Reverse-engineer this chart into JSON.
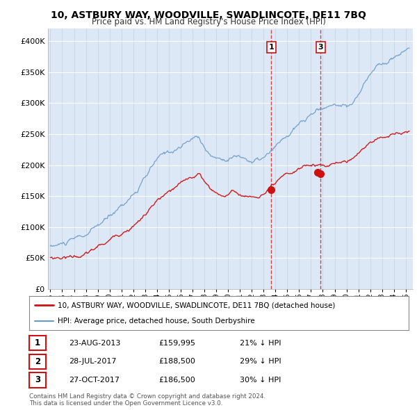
{
  "title": "10, ASTBURY WAY, WOODVILLE, SWADLINCOTE, DE11 7BQ",
  "subtitle": "Price paid vs. HM Land Registry's House Price Index (HPI)",
  "bg_color": "#ffffff",
  "plot_bg_color": "#dce8f5",
  "red_color": "#cc1111",
  "blue_color": "#6699cc",
  "sales": [
    {
      "label": "1",
      "year": 2013.65,
      "price": 159995,
      "show_vline": true
    },
    {
      "label": "2",
      "year": 2017.57,
      "price": 188500,
      "show_vline": false
    },
    {
      "label": "3",
      "year": 2017.82,
      "price": 186500,
      "show_vline": true
    }
  ],
  "legend_property": "10, ASTBURY WAY, WOODVILLE, SWADLINCOTE, DE11 7BQ (detached house)",
  "legend_hpi": "HPI: Average price, detached house, South Derbyshire",
  "table_rows": [
    {
      "num": "1",
      "date": "23-AUG-2013",
      "price": "£159,995",
      "pct": "21% ↓ HPI"
    },
    {
      "num": "2",
      "date": "28-JUL-2017",
      "price": "£188,500",
      "pct": "29% ↓ HPI"
    },
    {
      "num": "3",
      "date": "27-OCT-2017",
      "price": "£186,500",
      "pct": "30% ↓ HPI"
    }
  ],
  "footnote1": "Contains HM Land Registry data © Crown copyright and database right 2024.",
  "footnote2": "This data is licensed under the Open Government Licence v3.0.",
  "ylim": [
    0,
    420000
  ],
  "yticks": [
    0,
    50000,
    100000,
    150000,
    200000,
    250000,
    300000,
    350000,
    400000
  ],
  "xlim_start": 1994.8,
  "xlim_end": 2025.6
}
